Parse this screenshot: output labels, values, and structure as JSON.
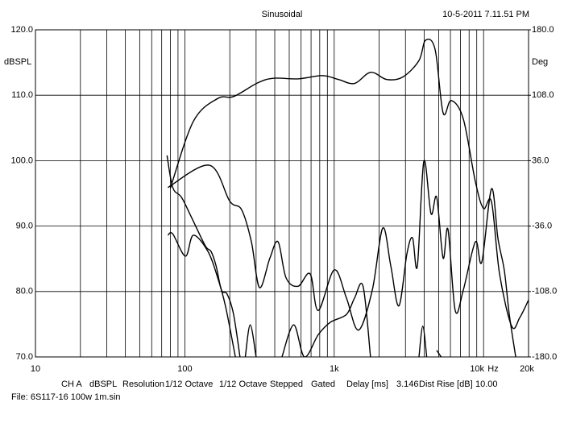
{
  "chart_data": {
    "type": "line",
    "title": "Sinusoidal",
    "timestamp": "10-5-2011 7.11.51 PM",
    "y_label": "dBSPL",
    "y2_label": "Deg",
    "x_unit": "Hz",
    "log_x": true,
    "grid": true,
    "xlim": [
      10,
      20000
    ],
    "xticks": [
      10,
      100,
      {
        "value": 1000,
        "label": "1k"
      },
      {
        "value": 10000,
        "label": "10k"
      },
      {
        "value": 20000,
        "label": "20k"
      }
    ],
    "ylim": [
      70,
      120
    ],
    "yticks": [
      {
        "value": 70,
        "label": "70.0"
      },
      {
        "value": 80,
        "label": "80.0"
      },
      {
        "value": 90,
        "label": "90.0"
      },
      {
        "value": 100,
        "label": "100.0"
      },
      {
        "value": 110,
        "label": "110.0"
      },
      {
        "value": 120,
        "label": "120.0"
      }
    ],
    "y2lim": [
      -180,
      180
    ],
    "y2ticks": [
      {
        "value": -180,
        "label": "-180.0"
      },
      {
        "value": -108,
        "label": "-108.0"
      },
      {
        "value": -36,
        "label": "-36.0"
      },
      {
        "value": 36,
        "label": "36.0"
      },
      {
        "value": 108,
        "label": "108.0"
      },
      {
        "value": 180,
        "label": "180.0"
      }
    ],
    "series": [
      {
        "color": "#000000",
        "x": [
          80,
          114,
          166,
          212,
          308,
          395,
          573,
          832,
          1070,
          1368,
          1754,
          2249,
          2884,
          3694,
          4082,
          4736,
          5358,
          6067,
          7311,
          8810,
          9977,
          11300,
          12790,
          15420,
          17460,
          20000
        ],
        "values": [
          95.8,
          106,
          109.5,
          109.8,
          111.9,
          112.6,
          112.5,
          113,
          112.4,
          111.8,
          113.5,
          112.4,
          112.8,
          115.3,
          118.4,
          117,
          107.3,
          109.2,
          106.4,
          96.8,
          92.7,
          93.7,
          82.7,
          74.7,
          76,
          78.7
        ]
      },
      {
        "color": "#000000",
        "x": [
          76,
          83,
          95,
          111,
          137,
          150,
          162,
          176,
          192,
          212,
          234
        ],
        "values": [
          100.8,
          95.9,
          94.4,
          91.3,
          87,
          86.1,
          83.9,
          80.2,
          79.6,
          76.5,
          70
        ]
      },
      {
        "color": "#000000",
        "x": [
          77,
          146,
          200,
          240,
          279,
          316,
          371,
          421,
          476,
          573,
          690,
          782,
          1000,
          1208,
          1455,
          1798,
          2113,
          2393,
          2710,
          3069,
          3345,
          3603,
          3981,
          4448,
          4853,
          5358,
          5776,
          6457,
          7311,
          8810,
          9727,
          11300,
          12480,
          13770,
          14860,
          16410
        ],
        "values": [
          95.9,
          99.3,
          93.8,
          92.5,
          87.6,
          80.6,
          85.1,
          87.6,
          82.1,
          80.8,
          82.7,
          77.1,
          83.3,
          79,
          74.1,
          80.2,
          89.7,
          83.9,
          77.8,
          85.8,
          88.2,
          83.9,
          99.9,
          91.9,
          94.4,
          85.1,
          89.5,
          77.1,
          80.2,
          87.6,
          84.5,
          95.7,
          88.1,
          83.2,
          76.5,
          70
        ]
      },
      {
        "color": "#000000",
        "x": [
          77,
          83,
          101,
          114,
          143,
          166,
          187,
          218
        ],
        "values": [
          88.6,
          88.8,
          85.4,
          88.6,
          86.1,
          82.1,
          77.8,
          70
        ]
      },
      {
        "color": "#000000",
        "x": [
          254,
          274,
          300,
          400,
          447,
          536,
          632,
          782,
          943,
          1208,
          1368,
          1560,
          1750,
          2500,
          3694,
          3917,
          4161,
          4400,
          4853,
          5200
        ],
        "values": [
          70,
          74.9,
          70,
          null,
          70,
          74.9,
          70,
          73.4,
          75.3,
          76.5,
          79,
          80.8,
          70,
          null,
          70,
          74.7,
          70,
          null,
          71,
          70
        ]
      }
    ],
    "footer": [
      "CH A",
      "dBSPL",
      "Resolution",
      "1/12 Octave",
      "1/12 Octave",
      "Stepped",
      "Gated",
      "Delay [ms]",
      "3.146",
      "Dist Rise [dB]",
      "10.00"
    ],
    "file": "File: 6S117-16 100w 1m.sin"
  }
}
